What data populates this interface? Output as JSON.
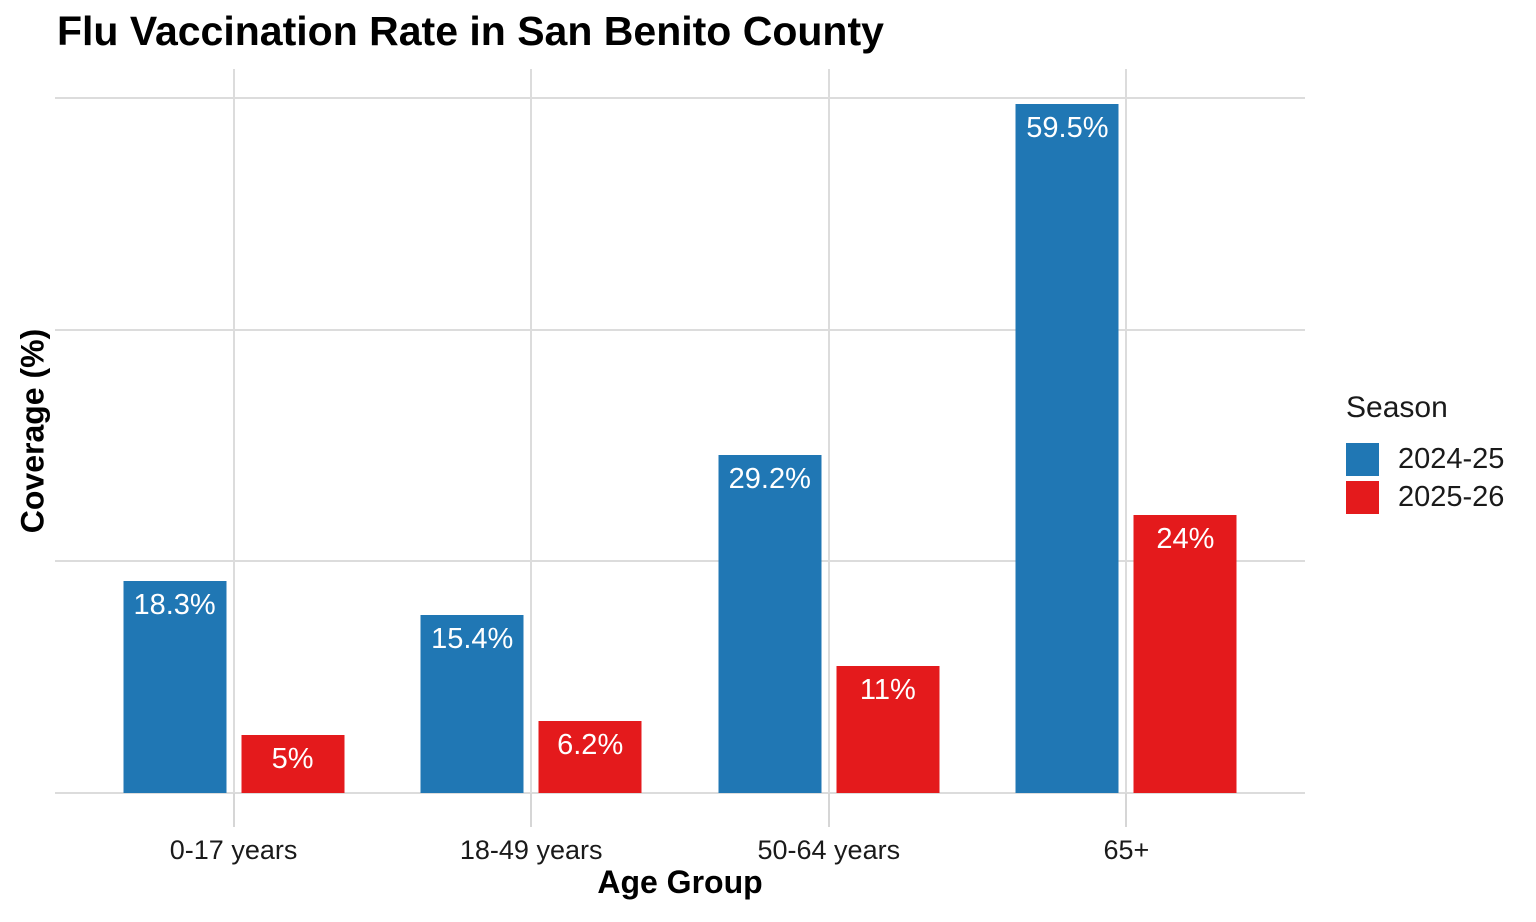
{
  "chart_data": {
    "type": "bar",
    "title": "Flu Vaccination Rate in San Benito County",
    "xlabel": "Age Group",
    "ylabel": "Coverage (%)",
    "categories": [
      "0-17 years",
      "18-49 years",
      "50-64 years",
      "65+"
    ],
    "series": [
      {
        "name": "2024-25",
        "color": "#2077b4",
        "values": [
          18.3,
          15.4,
          29.2,
          59.5
        ],
        "bar_labels": [
          "18.3%",
          "15.4%",
          "29.2%",
          "59.5%"
        ]
      },
      {
        "name": "2025-26",
        "color": "#e41a1c",
        "values": [
          5,
          6.2,
          11,
          24
        ],
        "bar_labels": [
          "5%",
          "6.2%",
          "11%",
          "24%"
        ]
      }
    ],
    "ylim": [
      0,
      62.5
    ],
    "y_gridlines": [
      0,
      20,
      40,
      60
    ],
    "grid": "on",
    "grid_color": "#dcdcdc",
    "tick_color": "#d6d6d6",
    "legend_title": "Season",
    "legend_position": "right",
    "background": "#ffffff"
  }
}
